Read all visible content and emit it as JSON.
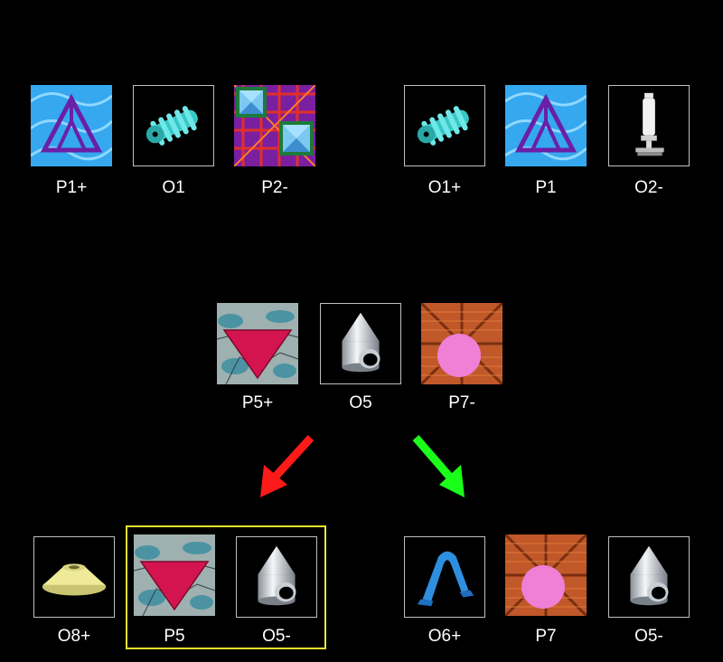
{
  "top_left": {
    "items": [
      {
        "label": "P1+",
        "icon": "blue-wave-purple-triangle-pattern-icon"
      },
      {
        "label": "O1",
        "icon": "cyan-twisted-screw-object-icon"
      },
      {
        "label": "P2-",
        "icon": "purple-red-lattice-pyramid-pattern-icon"
      }
    ]
  },
  "top_right": {
    "items": [
      {
        "label": "O1+",
        "icon": "cyan-twisted-screw-object-icon"
      },
      {
        "label": "P1",
        "icon": "blue-wave-purple-triangle-pattern-icon"
      },
      {
        "label": "O2-",
        "icon": "white-post-stand-object-icon"
      }
    ]
  },
  "middle": {
    "items": [
      {
        "label": "P5+",
        "icon": "marble-red-down-triangle-pattern-icon"
      },
      {
        "label": "O5",
        "icon": "silver-cone-pipe-object-icon"
      },
      {
        "label": "P7-",
        "icon": "wood-crate-pink-circle-pattern-icon"
      }
    ]
  },
  "bottom_left": {
    "items": [
      {
        "label": "O8+",
        "icon": "yellow-cone-disc-object-icon"
      },
      {
        "label": "P5",
        "icon": "marble-red-down-triangle-pattern-icon"
      },
      {
        "label": "O5-",
        "icon": "silver-cone-pipe-object-icon"
      }
    ],
    "highlight_color": "#e6e62e"
  },
  "bottom_right": {
    "items": [
      {
        "label": "O6+",
        "icon": "blue-folded-clip-object-icon"
      },
      {
        "label": "P7",
        "icon": "wood-crate-pink-circle-pattern-icon"
      },
      {
        "label": "O5-",
        "icon": "silver-cone-pipe-object-icon"
      }
    ]
  },
  "arrows": {
    "left": {
      "color": "#ff1a1a",
      "icon": "red-arrow-down-left-icon"
    },
    "right": {
      "color": "#1aff1a",
      "icon": "green-arrow-down-right-icon"
    }
  }
}
